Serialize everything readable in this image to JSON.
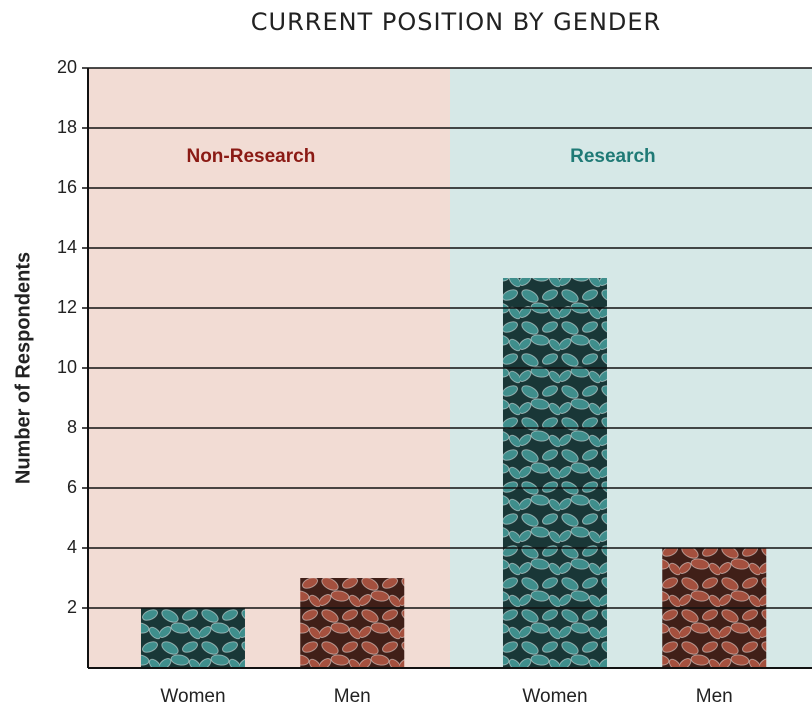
{
  "chart_data": {
    "type": "bar",
    "title": "CURRENT POSITION BY GENDER",
    "y_label": "Number of Respondents",
    "ylim": [
      0,
      20
    ],
    "yticks": [
      2,
      4,
      6,
      8,
      10,
      12,
      14,
      16,
      18,
      20
    ],
    "grid": true,
    "groups": [
      {
        "name": "Non-Research",
        "color": "#8b1a14",
        "background": "#f2dcd4",
        "categories": [
          "Women",
          "Men"
        ],
        "values": [
          2,
          3
        ],
        "colors": [
          "#3f8e8c",
          "#a4503e"
        ]
      },
      {
        "name": "Research",
        "color": "#1f7a76",
        "background": "#d6e8e7",
        "categories": [
          "Women",
          "Men"
        ],
        "values": [
          13,
          4
        ],
        "colors": [
          "#3f8e8c",
          "#a4503e"
        ]
      }
    ]
  }
}
